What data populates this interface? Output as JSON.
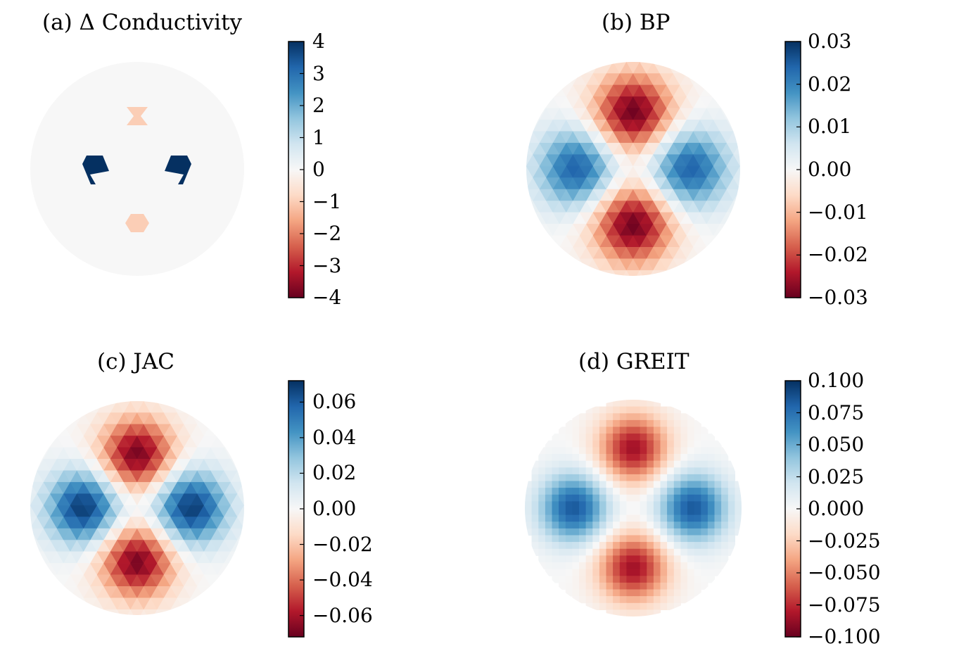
{
  "chart_data": [
    {
      "type": "heatmap",
      "panel": "a",
      "title": "(a) Δ Conductivity",
      "colormap": "RdBu",
      "clim": [
        -4,
        4
      ],
      "colorbar_ticks": [
        "4",
        "3",
        "2",
        "1",
        "0",
        "−1",
        "−2",
        "−3",
        "−4"
      ],
      "colorbar_tick_values": [
        4,
        3,
        2,
        1,
        0,
        -1,
        -2,
        -3,
        -4
      ],
      "background_value": 0,
      "inclusions": [
        {
          "shape": "hourglass",
          "position": "top",
          "value": -1
        },
        {
          "shape": "hexagon",
          "position": "bottom",
          "value": -1
        },
        {
          "shape": "shield",
          "position": "left",
          "value": 4
        },
        {
          "shape": "shield",
          "position": "right",
          "value": 4
        }
      ]
    },
    {
      "type": "heatmap",
      "panel": "b",
      "title": "(b) BP",
      "colormap": "RdBu",
      "clim": [
        -0.03,
        0.03
      ],
      "colorbar_ticks": [
        "0.03",
        "0.02",
        "0.01",
        "0.00",
        "−0.01",
        "−0.02",
        "−0.03"
      ],
      "colorbar_tick_values": [
        0.03,
        0.02,
        0.01,
        0.0,
        -0.01,
        -0.02,
        -0.03
      ],
      "peaks": [
        {
          "position": "top",
          "value": -0.03
        },
        {
          "position": "bottom",
          "value": -0.03
        },
        {
          "position": "left",
          "value": 0.025
        },
        {
          "position": "right",
          "value": 0.025
        }
      ]
    },
    {
      "type": "heatmap",
      "panel": "c",
      "title": "(c) JAC",
      "colormap": "RdBu",
      "clim": [
        -0.072,
        0.072
      ],
      "colorbar_ticks": [
        "0.06",
        "0.04",
        "0.02",
        "0.00",
        "−0.02",
        "−0.04",
        "−0.06"
      ],
      "colorbar_tick_values": [
        0.06,
        0.04,
        0.02,
        0.0,
        -0.02,
        -0.04,
        -0.06
      ],
      "peaks": [
        {
          "position": "top",
          "value": -0.07
        },
        {
          "position": "bottom",
          "value": -0.07
        },
        {
          "position": "left",
          "value": 0.07
        },
        {
          "position": "right",
          "value": 0.07
        }
      ]
    },
    {
      "type": "heatmap",
      "panel": "d",
      "title": "(d) GREIT",
      "colormap": "RdBu",
      "clim": [
        -0.1,
        0.1
      ],
      "colorbar_ticks": [
        "0.100",
        "0.075",
        "0.050",
        "0.025",
        "0.000",
        "−0.025",
        "−0.050",
        "−0.075",
        "−0.100"
      ],
      "colorbar_tick_values": [
        0.1,
        0.075,
        0.05,
        0.025,
        0.0,
        -0.025,
        -0.05,
        -0.075,
        -0.1
      ],
      "peaks": [
        {
          "position": "top",
          "value": -0.085
        },
        {
          "position": "bottom",
          "value": -0.085
        },
        {
          "position": "left",
          "value": 0.085
        },
        {
          "position": "right",
          "value": 0.085
        }
      ]
    }
  ]
}
